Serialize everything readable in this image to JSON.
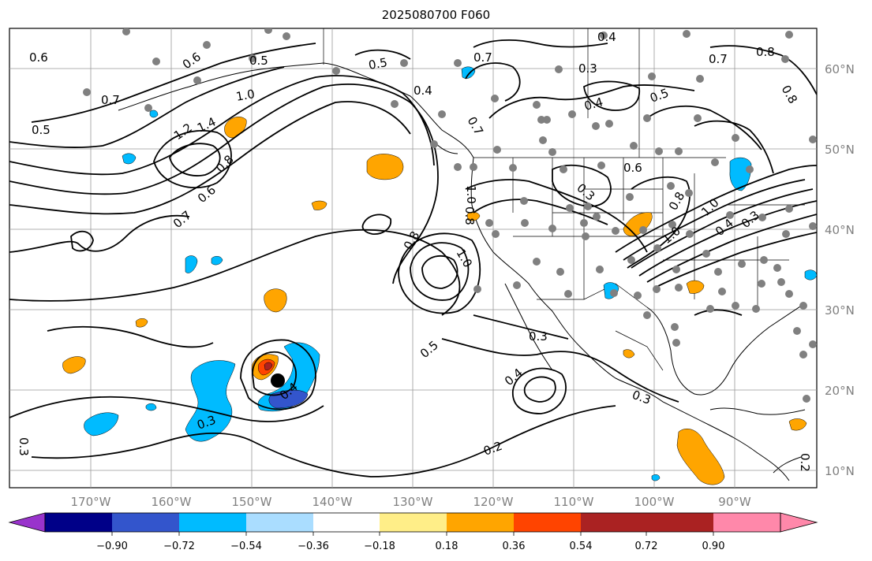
{
  "title": "2025080700 F060",
  "lat_labels": [
    "60°N",
    "50°N",
    "40°N",
    "30°N",
    "20°N",
    "10°N"
  ],
  "lon_labels": [
    "170°W",
    "160°W",
    "150°W",
    "140°W",
    "130°W",
    "120°W",
    "110°W",
    "100°W",
    "90°W"
  ],
  "colorbar": {
    "colors": [
      "#9933cc",
      "#000088",
      "#3355cc",
      "#00bbff",
      "#aaddff",
      "#ffffff",
      "#ffee88",
      "#ffa500",
      "#ff4400",
      "#aa2222",
      "#ff88aa"
    ],
    "ticks": [
      "−0.90",
      "−0.72",
      "−0.54",
      "−0.36",
      "−0.18",
      "0.18",
      "0.36",
      "0.54",
      "0.72",
      "0.90"
    ]
  },
  "contour_labels": [
    "0.6",
    "0.7",
    "0.5",
    "0.6",
    "0.5",
    "1.0",
    "1.2",
    "1.4",
    "0.8",
    "0.6",
    "0.7",
    "0.5",
    "0.4",
    "0.7",
    "0.4",
    "0.3",
    "0.7",
    "0.8",
    "0.4",
    "0.5",
    "0.8",
    "0.6",
    "0.3",
    "0.8",
    "1.0",
    "0.4",
    "0.3",
    "1.0",
    "0.8",
    "1.0",
    "0.5",
    "0.3",
    "0.4",
    "0.3",
    "0.2",
    "0.3",
    "0.3",
    "0.2",
    "0.4",
    "1.0",
    "0.8",
    "0.7"
  ],
  "storm_marker": "storm-center"
}
